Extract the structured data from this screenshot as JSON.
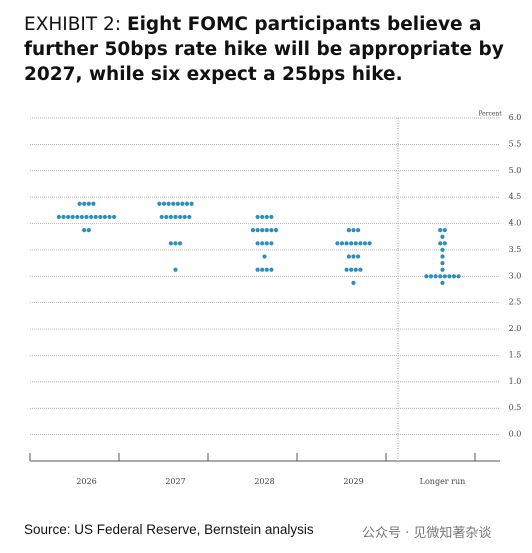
{
  "chart_data": {
    "type": "dotplot",
    "exhibit": "EXHIBIT 2:",
    "title": "Eight FOMC participants believe a further 50bps rate hike will be appropriate by 2027, while six expect a 25bps hike.",
    "y_label": "Percent",
    "color": "#2a8fc0",
    "ylim": [
      -0.5,
      6.0
    ],
    "yticks": [
      {
        "value": 6.0,
        "label": "6.0"
      },
      {
        "value": 5.5,
        "label": "5.5"
      },
      {
        "value": 5.0,
        "label": "5.0"
      },
      {
        "value": 4.5,
        "label": "4.5"
      },
      {
        "value": 4.0,
        "label": "4.0"
      },
      {
        "value": 3.5,
        "label": "3.5"
      },
      {
        "value": 3.0,
        "label": "3.0"
      },
      {
        "value": 2.5,
        "label": "2.5"
      },
      {
        "value": 2.0,
        "label": "2.0"
      },
      {
        "value": 1.5,
        "label": "1.5"
      },
      {
        "value": 1.0,
        "label": "1.0"
      },
      {
        "value": 0.5,
        "label": "0.5"
      },
      {
        "value": 0.0,
        "label": "0.0"
      }
    ],
    "grid": true,
    "categories": [
      "2026",
      "2027",
      "2028",
      "2029",
      "Longer run"
    ],
    "dots": [
      [
        {
          "rate": 4.375,
          "count": 4
        },
        {
          "rate": 4.125,
          "count": 13
        },
        {
          "rate": 3.875,
          "count": 2
        }
      ],
      [
        {
          "rate": 4.375,
          "count": 8
        },
        {
          "rate": 4.125,
          "count": 7
        },
        {
          "rate": 3.625,
          "count": 3
        },
        {
          "rate": 3.125,
          "count": 1
        }
      ],
      [
        {
          "rate": 4.125,
          "count": 4
        },
        {
          "rate": 3.875,
          "count": 6
        },
        {
          "rate": 3.625,
          "count": 4
        },
        {
          "rate": 3.375,
          "count": 1
        },
        {
          "rate": 3.125,
          "count": 4
        }
      ],
      [
        {
          "rate": 3.875,
          "count": 3
        },
        {
          "rate": 3.625,
          "count": 8
        },
        {
          "rate": 3.375,
          "count": 3
        },
        {
          "rate": 3.125,
          "count": 4
        },
        {
          "rate": 2.875,
          "count": 1
        }
      ],
      [
        {
          "rate": 3.875,
          "count": 2
        },
        {
          "rate": 3.75,
          "count": 1
        },
        {
          "rate": 3.625,
          "count": 2
        },
        {
          "rate": 3.5,
          "count": 1
        },
        {
          "rate": 3.375,
          "count": 1
        },
        {
          "rate": 3.25,
          "count": 1
        },
        {
          "rate": 3.125,
          "count": 1
        },
        {
          "rate": 3.0,
          "count": 8
        },
        {
          "rate": 2.875,
          "count": 1
        }
      ]
    ]
  },
  "source": "Source: US Federal Reserve, Bernstein analysis",
  "watermark": "公众号 · 见微知著杂谈"
}
